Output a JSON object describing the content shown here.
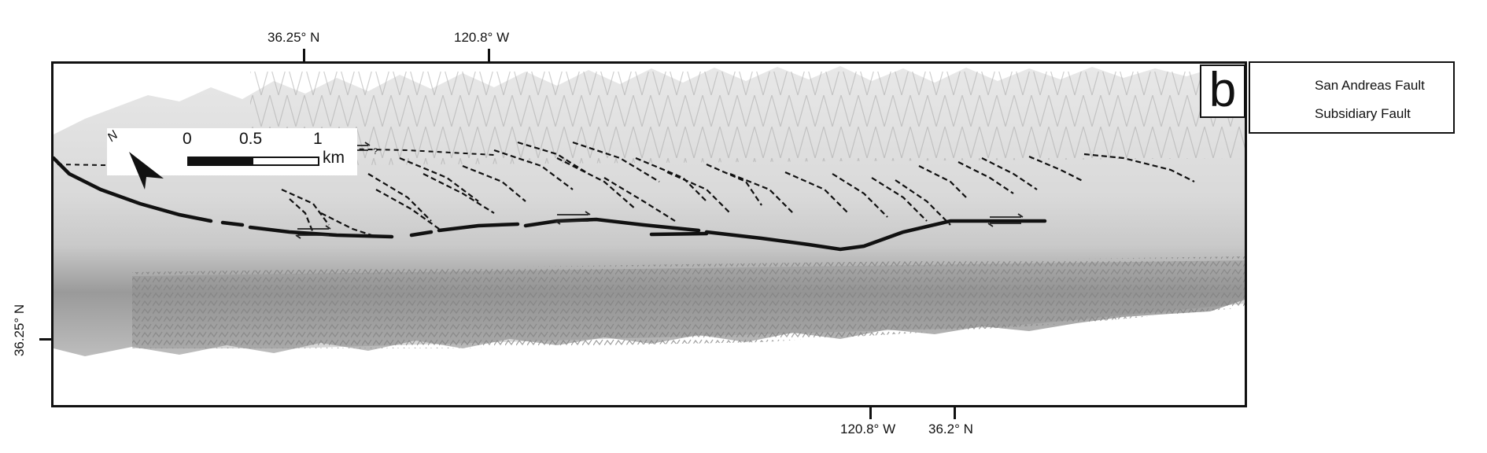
{
  "coordinates": {
    "top_left": "36.25° N",
    "top_right": "120.8° W",
    "left_side": "36.25° N",
    "bottom_left": "120.8° W",
    "bottom_right": "36.2° N"
  },
  "panel_label": "b",
  "scale_bar": {
    "labels": [
      "0",
      "0.5",
      "1"
    ],
    "unit": "km"
  },
  "north_arrow": {
    "label": "N"
  },
  "legend": {
    "items": [
      {
        "label": "San Andreas Fault",
        "style": "solid",
        "color": "#111111"
      },
      {
        "label": "Subsidiary Fault",
        "style": "dashed",
        "color": "#111111"
      }
    ]
  },
  "map": {
    "question_marks": [
      "?",
      "?",
      "?"
    ],
    "colors": {
      "relief_light": "#dcdcdc",
      "relief_dark": "#8f8f8f",
      "fault": "#111111"
    }
  }
}
